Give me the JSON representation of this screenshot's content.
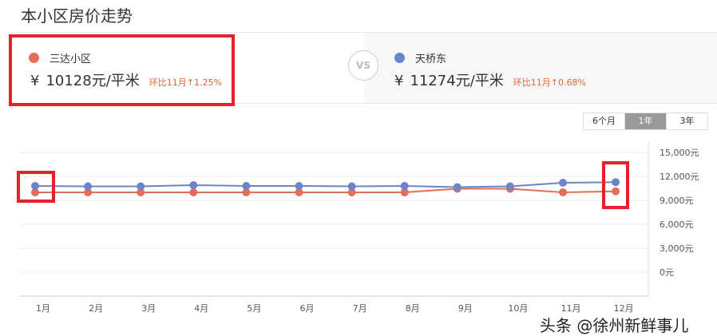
{
  "title": "本小区房价走势",
  "left": {
    "name": "三达小区",
    "currency": "¥",
    "price": "10128元/平米",
    "change": "环比11月↑1.25%",
    "color": "#e36c5a"
  },
  "vs": "VS",
  "right": {
    "name": "天桥东",
    "currency": "¥",
    "price": "11274元/平米",
    "change": "环比11月↑0.68%",
    "color": "#6b86c8"
  },
  "range_buttons": [
    "6个月",
    "1年",
    "3年"
  ],
  "range_active": "1年",
  "watermark": "头条 @徐州新鲜事儿",
  "chart_data": {
    "type": "line",
    "categories": [
      "1月",
      "2月",
      "3月",
      "4月",
      "5月",
      "6月",
      "7月",
      "8月",
      "9月",
      "10月",
      "11月",
      "12月"
    ],
    "ylim": [
      0,
      15000
    ],
    "yticks": [
      0,
      3000,
      6000,
      9000,
      12000,
      15000
    ],
    "ytick_labels": [
      "0元",
      "3,000元",
      "6,000元",
      "9,000元",
      "12,000元",
      "15,000元"
    ],
    "grid": true,
    "series": [
      {
        "name": "天桥东",
        "color": "#6b86c8",
        "values": [
          10800,
          10750,
          10750,
          10900,
          10800,
          10800,
          10750,
          10800,
          10650,
          10750,
          11198,
          11274
        ]
      },
      {
        "name": "三达小区",
        "color": "#e36c5a",
        "values": [
          10000,
          10000,
          10000,
          10000,
          10000,
          10000,
          10000,
          10000,
          10450,
          10450,
          10003,
          10128
        ]
      }
    ]
  }
}
